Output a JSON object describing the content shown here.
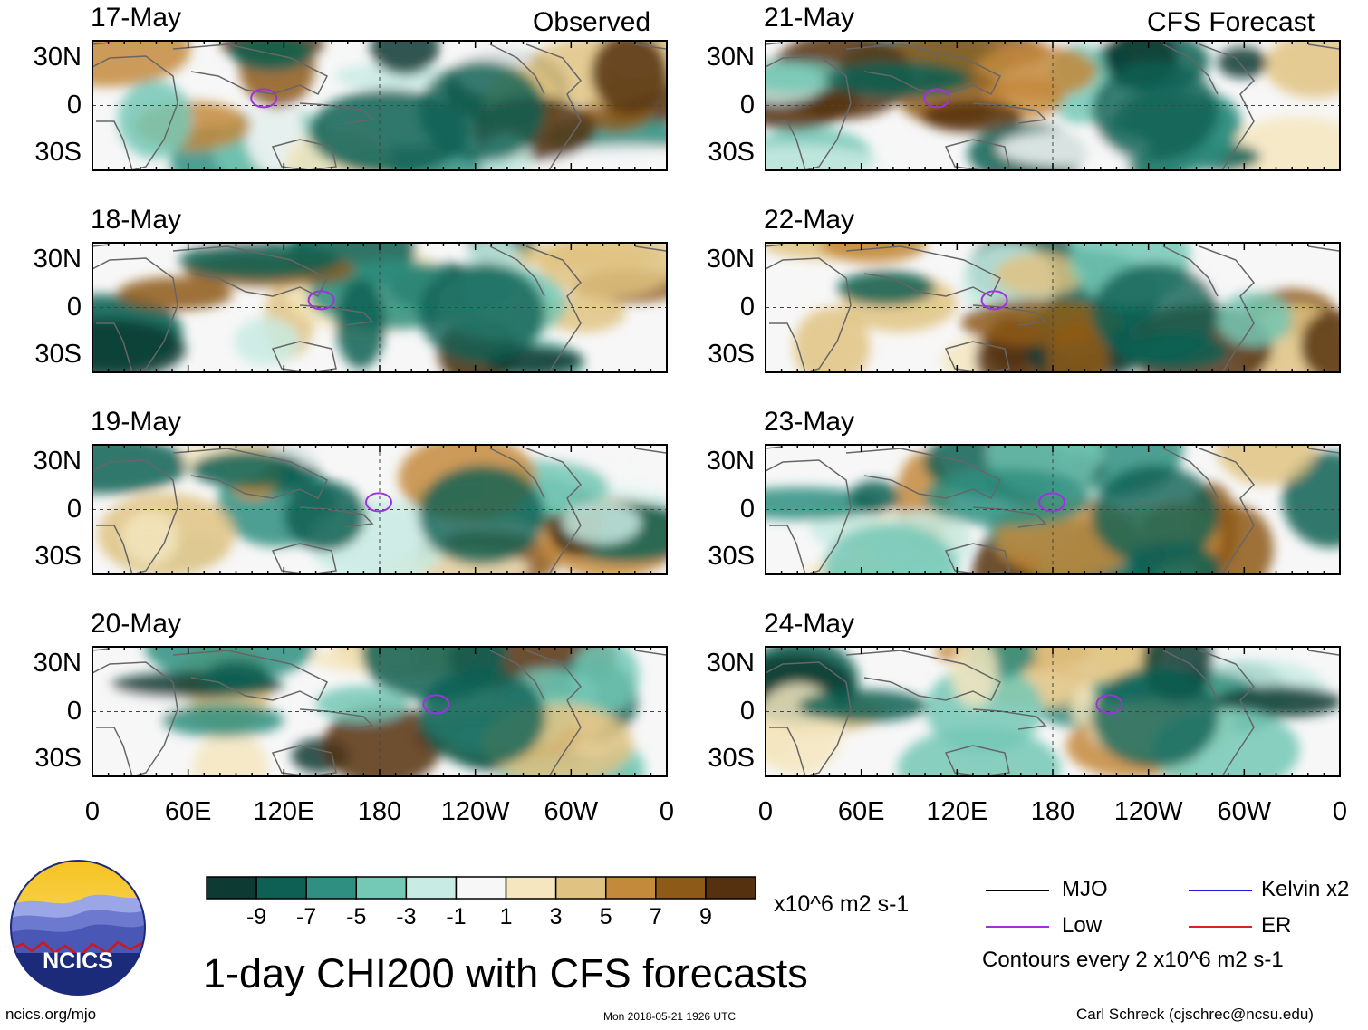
{
  "headers": {
    "left": "Observed",
    "right": "CFS Forecast"
  },
  "panels": [
    {
      "date": "17-May",
      "column": "observed"
    },
    {
      "date": "18-May",
      "column": "observed"
    },
    {
      "date": "19-May",
      "column": "observed"
    },
    {
      "date": "20-May",
      "column": "observed"
    },
    {
      "date": "21-May",
      "column": "forecast"
    },
    {
      "date": "22-May",
      "column": "forecast"
    },
    {
      "date": "23-May",
      "column": "forecast"
    },
    {
      "date": "24-May",
      "column": "forecast"
    }
  ],
  "latitude_labels": [
    "30N",
    "0",
    "30S"
  ],
  "longitude_labels": [
    "0",
    "60E",
    "120E",
    "180",
    "120W",
    "60W",
    "0"
  ],
  "colorbar": {
    "labels": [
      "-9",
      "-7",
      "-5",
      "-3",
      "-1",
      "1",
      "3",
      "5",
      "7",
      "9"
    ],
    "colors": [
      "#0d3b33",
      "#0e6054",
      "#2f8f80",
      "#74c8b6",
      "#c8ebe3",
      "#f7f7f7",
      "#f5e6bf",
      "#e0c383",
      "#c48a3c",
      "#8e5a17",
      "#553110"
    ],
    "units": "x10^6 m2 s-1"
  },
  "legend": {
    "items": [
      {
        "label": "MJO",
        "color": "#000000"
      },
      {
        "label": "Kelvin x2",
        "color": "#1a1ae0"
      },
      {
        "label": "Low",
        "color": "#a030e0"
      },
      {
        "label": "ER",
        "color": "#e02020"
      }
    ],
    "contours_note": "Contours every 2 x10^6 m2 s-1"
  },
  "title": "1-day CHI200 with CFS forecasts",
  "logo_text": "NCICS",
  "footer": {
    "url": "ncics.org/mjo",
    "timestamp": "Mon 2018-05-21 1926 UTC",
    "author": "Carl Schreck (cjschrec@ncsu.edu)"
  }
}
